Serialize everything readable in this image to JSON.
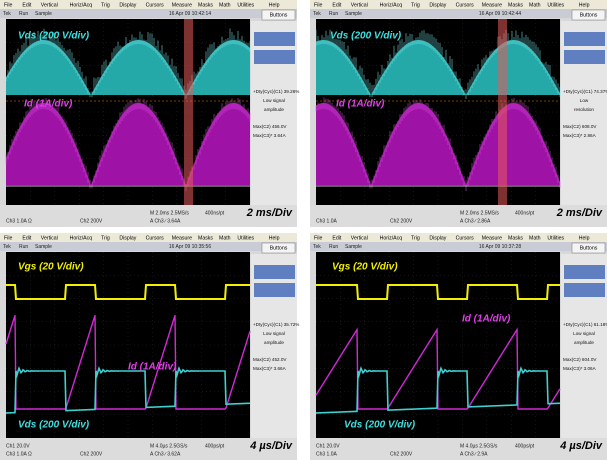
{
  "menu": [
    "File",
    "Edit",
    "Vertical",
    "Horiz/Acq",
    "Trig",
    "Display",
    "Cursors",
    "Measure",
    "Masks",
    "Math",
    "Utilities",
    "Help"
  ],
  "panels": [
    {
      "status": [
        "Tek",
        "Run",
        "Sample"
      ],
      "date": "16 Apr 09 10:42:14",
      "button": "Buttons",
      "labels": [
        "Vds  (200 V/div)",
        "Id  (1A/div)"
      ],
      "side": [
        "+Dty(Cyc)(C1)  39.26%",
        "Low signal",
        "amplitude",
        "Max(C2)   456.0V",
        "Max(C3)*   3.64A"
      ],
      "bottom": [
        "Ch3  1.0A Ω",
        "Ch2  200V",
        "M 2.0ms 2.5MS/s",
        "400ns/pt",
        "A  Ch3 ∕ 3.64A"
      ],
      "scale": "2 ms/Div"
    },
    {
      "status": [
        "Tek",
        "Run",
        "Sample"
      ],
      "date": "16 Apr 09 10:42:44",
      "button": "Buttons",
      "labels": [
        "Vds  (200 V/div)",
        "Id  (1A/div)"
      ],
      "side": [
        "+Dty(Cyc)(C1)  74.37%",
        "Low",
        "resolution",
        "Max(C2)   608.0V",
        "Max(C3)*   2.86A"
      ],
      "bottom": [
        "Ch3  1.0A",
        "Ch2  200V",
        "M 2.0ms 2.5MS/s",
        "400ns/pt",
        "A  Ch3 ∕ 2.86A"
      ],
      "scale": "2 ms/Div"
    },
    {
      "status": [
        "Tek",
        "Run",
        "Sample"
      ],
      "date": "16 Apr 09 10:35:56",
      "button": "Buttons",
      "labels": [
        "Vgs  (20 V/div)",
        "Id  (1A/div)",
        "Vds  (200 V/div)"
      ],
      "side": [
        "+Dty(Cyc)(C1)  35.72%",
        "Low signal",
        "amplitude",
        "Max(C2)   452.0V",
        "Max(C3)*   3.66A"
      ],
      "bottom": [
        "Ch1  20.0V",
        "Ch3  1.0A Ω",
        "Ch2  200V",
        "M 4.0µs 2.5GS/s",
        "400ps/pt",
        "A  Ch3 ∕ 3.62A"
      ],
      "scale": "4 µs/Div"
    },
    {
      "status": [
        "Tek",
        "Run",
        "Sample"
      ],
      "date": "16 Apr 09 10:37:28",
      "button": "Buttons",
      "labels": [
        "Vgs  (20 V/div)",
        "Id  (1A/div)",
        "Vds  (200 V/div)"
      ],
      "side": [
        "+Dty(Cyc)(C1)  61.18%",
        "Low signal",
        "amplitude",
        "Max(C2)   604.0V",
        "Max(C3)*   3.06A"
      ],
      "bottom": [
        "Ch1  20.0V",
        "Ch3  1.0A",
        "Ch2  200V",
        "M 4.0µs 2.5GS/s",
        "400ps/pt",
        "A  Ch3 ∕ 2.9A"
      ],
      "scale": "4 µs/Div"
    }
  ]
}
